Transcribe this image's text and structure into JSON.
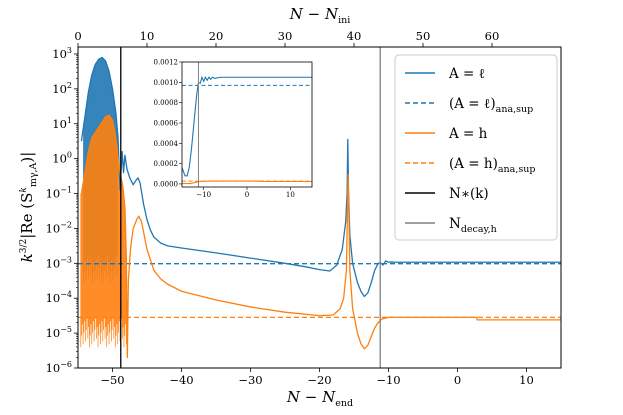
{
  "chart_data": {
    "type": "line",
    "xlabel": "N − N",
    "xlabel_sub": "end",
    "top_xlabel": "N − N",
    "top_xlabel_sub": "ini",
    "ylabel": "k",
    "ylabel_sup": "3/2",
    "ylabel_rest": "|Re (S",
    "ylabel_s_sup": "k",
    "ylabel_s_sub": "mγ,A",
    "ylabel_close": ")|",
    "yscale": "log",
    "xlim": [
      -55,
      15
    ],
    "ylim_exp": [
      -6,
      3.2
    ],
    "xticks": [
      -50,
      -40,
      -30,
      -20,
      -10,
      0,
      10
    ],
    "top_xticks": [
      0,
      10,
      20,
      30,
      40,
      50,
      60
    ],
    "top_offset": 55,
    "yticks_exp": [
      -6,
      -5,
      -4,
      -3,
      -2,
      -1,
      0,
      1,
      2,
      3
    ],
    "vlines": [
      {
        "name": "N∗(k)",
        "x": -48.8,
        "color": "#000000"
      },
      {
        "name": "N_decay,h",
        "x": -11.2,
        "color": "#808080"
      }
    ],
    "series": [
      {
        "name": "A = ℓ",
        "style": "solid",
        "color": "#1f77b4",
        "points": [
          [
            -54.5,
            0.5
          ],
          [
            -53.5,
            1.9
          ],
          [
            -53.0,
            2.4
          ],
          [
            -52.5,
            2.7
          ],
          [
            -52.0,
            2.85
          ],
          [
            -51.5,
            2.9
          ],
          [
            -51.0,
            2.8
          ],
          [
            -50.5,
            2.5
          ],
          [
            -50.0,
            2.0
          ],
          [
            -49.5,
            1.3
          ],
          [
            -49.2,
            0.6
          ],
          [
            -49.0,
            -0.4
          ],
          [
            -48.9,
            -0.9
          ],
          [
            -48.8,
            -0.5
          ],
          [
            -48.6,
            0.2
          ],
          [
            -48.4,
            -0.4
          ],
          [
            -48.2,
            0.1
          ],
          [
            -47.9,
            -0.3
          ],
          [
            -47.5,
            -0.55
          ],
          [
            -47.0,
            -0.75
          ],
          [
            -46.7,
            -0.65
          ],
          [
            -46.3,
            -0.55
          ],
          [
            -46.0,
            -0.7
          ],
          [
            -45.5,
            -1.3
          ],
          [
            -45.0,
            -1.75
          ],
          [
            -44.5,
            -2.05
          ],
          [
            -44.0,
            -2.25
          ],
          [
            -43.0,
            -2.42
          ],
          [
            -42.0,
            -2.5
          ],
          [
            -40.0,
            -2.56
          ],
          [
            -35.0,
            -2.7
          ],
          [
            -30.0,
            -2.85
          ],
          [
            -25.0,
            -3.0
          ],
          [
            -22.0,
            -3.1
          ],
          [
            -20.0,
            -3.18
          ],
          [
            -18.5,
            -3.22
          ],
          [
            -17.5,
            -3.05
          ],
          [
            -16.7,
            -2.6
          ],
          [
            -16.2,
            -1.8
          ],
          [
            -16.0,
            -1.0
          ],
          [
            -15.9,
            0.55
          ],
          [
            -15.8,
            -0.9
          ],
          [
            -15.6,
            -2.2
          ],
          [
            -15.2,
            -3.0
          ],
          [
            -14.5,
            -3.55
          ],
          [
            -14.0,
            -3.8
          ],
          [
            -13.5,
            -3.95
          ],
          [
            -13.0,
            -3.85
          ],
          [
            -12.5,
            -3.55
          ],
          [
            -12.0,
            -3.2
          ],
          [
            -11.5,
            -3.0
          ],
          [
            -11.2,
            -2.98
          ],
          [
            -10.8,
            -3.05
          ],
          [
            -10.4,
            -2.93
          ],
          [
            -10.0,
            -2.97
          ],
          [
            -9.6,
            -2.96
          ],
          [
            -9.0,
            -2.97
          ],
          [
            -5.0,
            -2.97
          ],
          [
            0.0,
            -2.97
          ],
          [
            5.0,
            -2.97
          ],
          [
            10.0,
            -2.97
          ],
          [
            15.0,
            -2.97
          ]
        ]
      },
      {
        "name": "(A = ℓ)ana,sup",
        "style": "dashed",
        "color": "#1f77b4",
        "points": [
          [
            -55,
            -3.01
          ],
          [
            15,
            -3.01
          ]
        ]
      },
      {
        "name": "A = h",
        "style": "solid",
        "color": "#ff7f0e",
        "points": [
          [
            -54.5,
            -1.0
          ],
          [
            -53.5,
            0.2
          ],
          [
            -53.0,
            0.6
          ],
          [
            -52.0,
            0.9
          ],
          [
            -51.0,
            1.2
          ],
          [
            -50.5,
            1.25
          ],
          [
            -50.0,
            1.1
          ],
          [
            -49.6,
            0.7
          ],
          [
            -49.3,
            0.2
          ],
          [
            -49.0,
            -0.3
          ],
          [
            -48.5,
            -0.8
          ],
          [
            -48.2,
            -1.4
          ],
          [
            -48.0,
            -2.8
          ],
          [
            -47.85,
            -5.7
          ],
          [
            -47.7,
            -3.5
          ],
          [
            -47.4,
            -2.6
          ],
          [
            -47.0,
            -2.0
          ],
          [
            -46.5,
            -1.75
          ],
          [
            -46.2,
            -1.65
          ],
          [
            -45.8,
            -1.8
          ],
          [
            -45.0,
            -2.6
          ],
          [
            -44.0,
            -3.2
          ],
          [
            -43.0,
            -3.45
          ],
          [
            -42.0,
            -3.6
          ],
          [
            -40.0,
            -3.8
          ],
          [
            -35.0,
            -4.05
          ],
          [
            -30.0,
            -4.25
          ],
          [
            -25.0,
            -4.4
          ],
          [
            -20.0,
            -4.5
          ],
          [
            -18.0,
            -4.48
          ],
          [
            -17.0,
            -4.3
          ],
          [
            -16.5,
            -4.0
          ],
          [
            -16.1,
            -3.2
          ],
          [
            -15.95,
            -1.5
          ],
          [
            -15.85,
            -0.45
          ],
          [
            -15.75,
            -1.5
          ],
          [
            -15.6,
            -3.2
          ],
          [
            -15.2,
            -4.3
          ],
          [
            -14.5,
            -5.0
          ],
          [
            -14.0,
            -5.3
          ],
          [
            -13.5,
            -5.45
          ],
          [
            -13.0,
            -5.35
          ],
          [
            -12.5,
            -5.1
          ],
          [
            -12.0,
            -4.85
          ],
          [
            -11.5,
            -4.7
          ],
          [
            -11.0,
            -4.6
          ],
          [
            -10.0,
            -4.55
          ],
          [
            -9.0,
            -4.55
          ],
          [
            -5.0,
            -4.55
          ],
          [
            0.0,
            -4.55
          ],
          [
            2.8,
            -4.55
          ],
          [
            2.85,
            -4.62
          ],
          [
            5.0,
            -4.62
          ],
          [
            10.0,
            -4.62
          ],
          [
            15.0,
            -4.62
          ]
        ]
      },
      {
        "name": "(A = h)ana,sup",
        "style": "dashed",
        "color": "#ff7f0e",
        "points": [
          [
            -55,
            -4.55
          ],
          [
            15,
            -4.55
          ]
        ]
      }
    ],
    "oscillation_bands": [
      {
        "series": "A = ℓ",
        "color": "#1f77b4",
        "x_range": [
          -54.2,
          -49.3
        ],
        "y_low_exp": -3.6,
        "lines": 42
      },
      {
        "series": "A = h",
        "color": "#ff7f0e",
        "x_range": [
          -54.6,
          -48.0
        ],
        "y_low_exp": -5.4,
        "lines": 58
      }
    ],
    "legend": {
      "placement": "upper right",
      "entries": [
        {
          "label": "A = ℓ",
          "text": "A = ℓ",
          "sub": "",
          "style": "solid",
          "color": "#1f77b4"
        },
        {
          "label": "(A = ℓ)ana,sup",
          "text": "(A = ℓ)",
          "sub": "ana,sup",
          "style": "dashed",
          "color": "#1f77b4"
        },
        {
          "label": "A = h",
          "text": "A = h",
          "sub": "",
          "style": "solid",
          "color": "#ff7f0e"
        },
        {
          "label": "(A = h)ana,sup",
          "text": "(A = h)",
          "sub": "ana,sup",
          "style": "dashed",
          "color": "#ff7f0e"
        },
        {
          "label": "N∗(k)",
          "text": "N∗(k)",
          "sub": "",
          "style": "solid",
          "color": "#000000"
        },
        {
          "label": "N_decay,h",
          "text": "N",
          "sub": "decay,h",
          "style": "solid",
          "color": "#808080"
        }
      ]
    },
    "inset": {
      "xlim": [
        -15,
        15
      ],
      "ylim": [
        -3e-05,
        0.0012
      ],
      "xticks": [
        -10,
        0,
        10
      ],
      "xtick_labels": [
        "−10",
        "0",
        "10"
      ],
      "yticks": [
        0.0,
        0.0002,
        0.0004,
        0.0006,
        0.0008,
        0.001,
        0.0012
      ],
      "ytick_labels": [
        "0.0000",
        "0.0002",
        "0.0004",
        "0.0006",
        "0.0008",
        "0.0010",
        "0.0012"
      ],
      "vline": -11.2,
      "dashed_l": 0.00097,
      "dashed_h": 2.8e-05,
      "series_l": [
        [
          -15,
          0.00016
        ],
        [
          -14.3,
          8e-05
        ],
        [
          -13.8,
          8e-05
        ],
        [
          -13.3,
          0.00017
        ],
        [
          -12.8,
          0.00035
        ],
        [
          -12.2,
          0.00062
        ],
        [
          -11.6,
          0.00088
        ],
        [
          -11.2,
          0.001
        ],
        [
          -10.8,
          0.00099
        ],
        [
          -10.4,
          0.00105
        ],
        [
          -10.0,
          0.00101
        ],
        [
          -9.6,
          0.00105
        ],
        [
          -9.2,
          0.00102
        ],
        [
          -8.8,
          0.00105
        ],
        [
          -8.4,
          0.00103
        ],
        [
          -8.0,
          0.00105
        ],
        [
          -7.5,
          0.00104
        ],
        [
          -6.0,
          0.00105
        ],
        [
          0.0,
          0.00105
        ],
        [
          15.0,
          0.00105
        ]
      ],
      "series_h": [
        [
          -15,
          4.5e-06
        ],
        [
          -13,
          4e-06
        ],
        [
          -11.5,
          2e-05
        ],
        [
          -11.0,
          2.5e-05
        ],
        [
          -9.0,
          2.8e-05
        ],
        [
          2.9,
          2.8e-05
        ],
        [
          3.0,
          2.4e-05
        ],
        [
          15.0,
          2.4e-05
        ]
      ]
    }
  }
}
